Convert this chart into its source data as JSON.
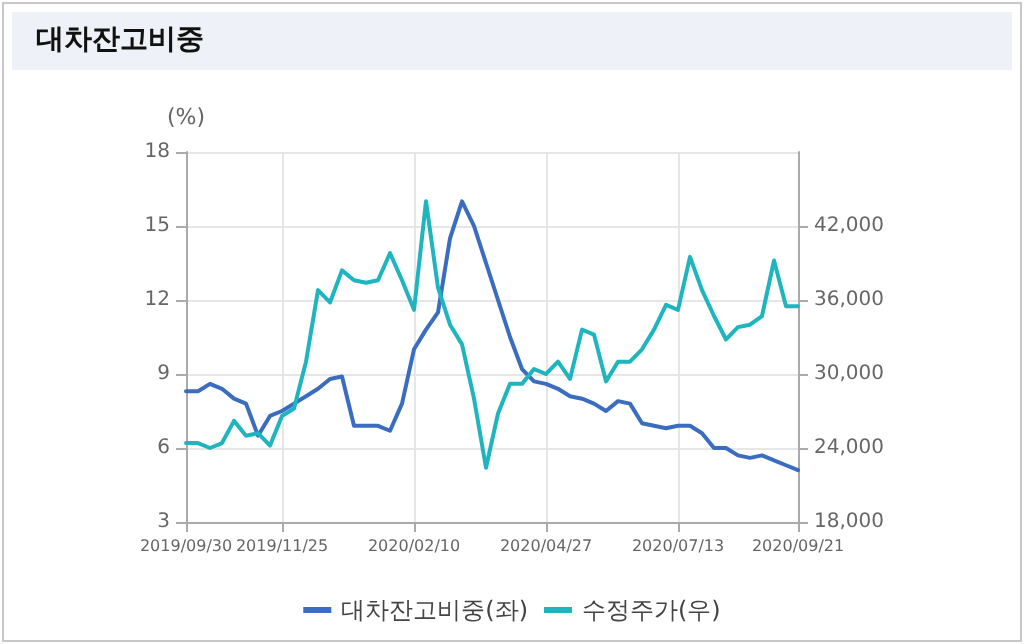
{
  "chart_data": {
    "type": "line",
    "title": "대차잔고비중",
    "ylabel": "(%)",
    "x": [
      "2019-09-30",
      "2019-10-07",
      "2019-10-14",
      "2019-10-21",
      "2019-10-28",
      "2019-11-04",
      "2019-11-11",
      "2019-11-18",
      "2019-11-25",
      "2019-12-02",
      "2019-12-09",
      "2019-12-16",
      "2019-12-23",
      "2019-12-30",
      "2020-01-06",
      "2020-01-13",
      "2020-01-20",
      "2020-01-27",
      "2020-02-03",
      "2020-02-10",
      "2020-02-17",
      "2020-02-24",
      "2020-03-02",
      "2020-03-09",
      "2020-03-16",
      "2020-03-23",
      "2020-03-30",
      "2020-04-06",
      "2020-04-13",
      "2020-04-20",
      "2020-04-27",
      "2020-05-04",
      "2020-05-11",
      "2020-05-18",
      "2020-05-25",
      "2020-06-01",
      "2020-06-08",
      "2020-06-15",
      "2020-06-22",
      "2020-06-29",
      "2020-07-06",
      "2020-07-13",
      "2020-07-20",
      "2020-07-27",
      "2020-08-03",
      "2020-08-10",
      "2020-08-17",
      "2020-08-24",
      "2020-08-31",
      "2020-09-07",
      "2020-09-14",
      "2020-09-21"
    ],
    "series": [
      {
        "name": "대차잔고비중(좌)",
        "color": "#3a6cc0",
        "values": [
          8.3,
          8.3,
          8.6,
          8.4,
          8.0,
          7.8,
          6.5,
          7.3,
          7.5,
          7.8,
          8.1,
          8.4,
          8.8,
          8.9,
          6.9,
          6.9,
          6.9,
          6.7,
          7.8,
          10.0,
          10.8,
          11.5,
          14.5,
          16.0,
          15.0,
          13.5,
          12.0,
          10.5,
          9.2,
          8.7,
          8.6,
          8.4,
          8.1,
          8.0,
          7.8,
          7.5,
          7.9,
          7.8,
          7.0,
          6.9,
          6.8,
          6.9,
          6.9,
          6.6,
          6.0,
          6.0,
          5.7,
          5.6,
          5.7,
          5.5,
          5.3,
          5.1
        ]
      },
      {
        "name": "수정주가(우)",
        "color": "#1fb5be",
        "axis": "y2",
        "values": [
          24400,
          24400,
          24000,
          24400,
          26200,
          25000,
          25200,
          24200,
          26600,
          27200,
          31000,
          36800,
          35800,
          38400,
          37600,
          37400,
          37600,
          39800,
          37600,
          35200,
          44000,
          37000,
          34000,
          32400,
          28000,
          22400,
          26800,
          29200,
          29200,
          30400,
          30000,
          31000,
          29600,
          33600,
          33200,
          29400,
          31000,
          31000,
          32000,
          33600,
          35600,
          35200,
          39500,
          36800,
          34700,
          32800,
          33800,
          34000,
          34700,
          39200,
          35500,
          35500
        ]
      }
    ],
    "ylim": [
      3,
      18
    ],
    "yticks": [
      3,
      6,
      9,
      12,
      15,
      18
    ],
    "y2lim": [
      18000,
      48000
    ],
    "y2ticks": [
      {
        "value": 18000,
        "label": "18,000"
      },
      {
        "value": 24000,
        "label": "24,000"
      },
      {
        "value": 30000,
        "label": "30,000"
      },
      {
        "value": 36000,
        "label": "36,000"
      },
      {
        "value": 42000,
        "label": "42,000"
      }
    ],
    "xlim": [
      "2019-09-30",
      "2020-09-21"
    ],
    "xticks": [
      {
        "value": "2019-09-30",
        "label": "2019/09/30"
      },
      {
        "value": "2019-11-25",
        "label": "2019/11/25"
      },
      {
        "value": "2020-02-10",
        "label": "2020/02/10"
      },
      {
        "value": "2020-04-27",
        "label": "2020/04/27"
      },
      {
        "value": "2020-07-13",
        "label": "2020/07/13"
      },
      {
        "value": "2020-09-21",
        "label": "2020/09/21"
      }
    ],
    "grid": true,
    "legend": "bottom",
    "marker": "none",
    "line_style": "solid"
  }
}
